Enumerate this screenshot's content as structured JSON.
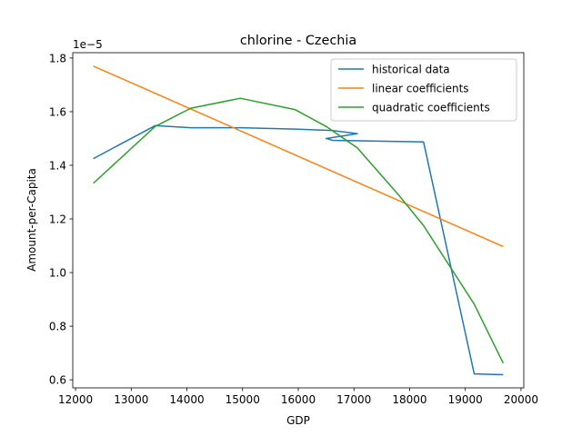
{
  "chart_data": {
    "type": "line",
    "title": "chlorine - Czechia",
    "xlabel": "GDP",
    "ylabel": "Amount-per-Capita",
    "y_offset_label": "1e−5",
    "xlim": [
      11950,
      20050
    ],
    "ylim": [
      0.57,
      1.82
    ],
    "x_ticks": [
      12000,
      13000,
      14000,
      15000,
      16000,
      17000,
      18000,
      19000,
      20000
    ],
    "y_ticks": [
      0.6,
      0.8,
      1.0,
      1.2,
      1.4,
      1.6,
      1.8
    ],
    "y_tick_labels": [
      "0.6",
      "0.8",
      "1.0",
      "1.2",
      "1.4",
      "1.6",
      "1.8"
    ],
    "grid": false,
    "legend_position": "upper-right",
    "series": [
      {
        "name": "historical data",
        "color": "#1f77b4",
        "x": [
          12320,
          13430,
          14070,
          14960,
          15940,
          16600,
          17060,
          16500,
          16620,
          18250,
          19160,
          19680
        ],
        "y": [
          1.425,
          1.548,
          1.54,
          1.54,
          1.535,
          1.53,
          1.518,
          1.5,
          1.493,
          1.487,
          0.622,
          0.619
        ]
      },
      {
        "name": "linear coefficients",
        "color": "#ff7f0e",
        "x": [
          12320,
          19680
        ],
        "y": [
          1.77,
          1.097
        ]
      },
      {
        "name": "quadratic coefficients",
        "color": "#2ca02c",
        "x": [
          12320,
          13430,
          14070,
          14960,
          15940,
          16500,
          17060,
          17800,
          18250,
          19160,
          19680
        ],
        "y": [
          1.333,
          1.545,
          1.613,
          1.65,
          1.608,
          1.545,
          1.465,
          1.29,
          1.175,
          0.882,
          0.662
        ]
      }
    ]
  }
}
